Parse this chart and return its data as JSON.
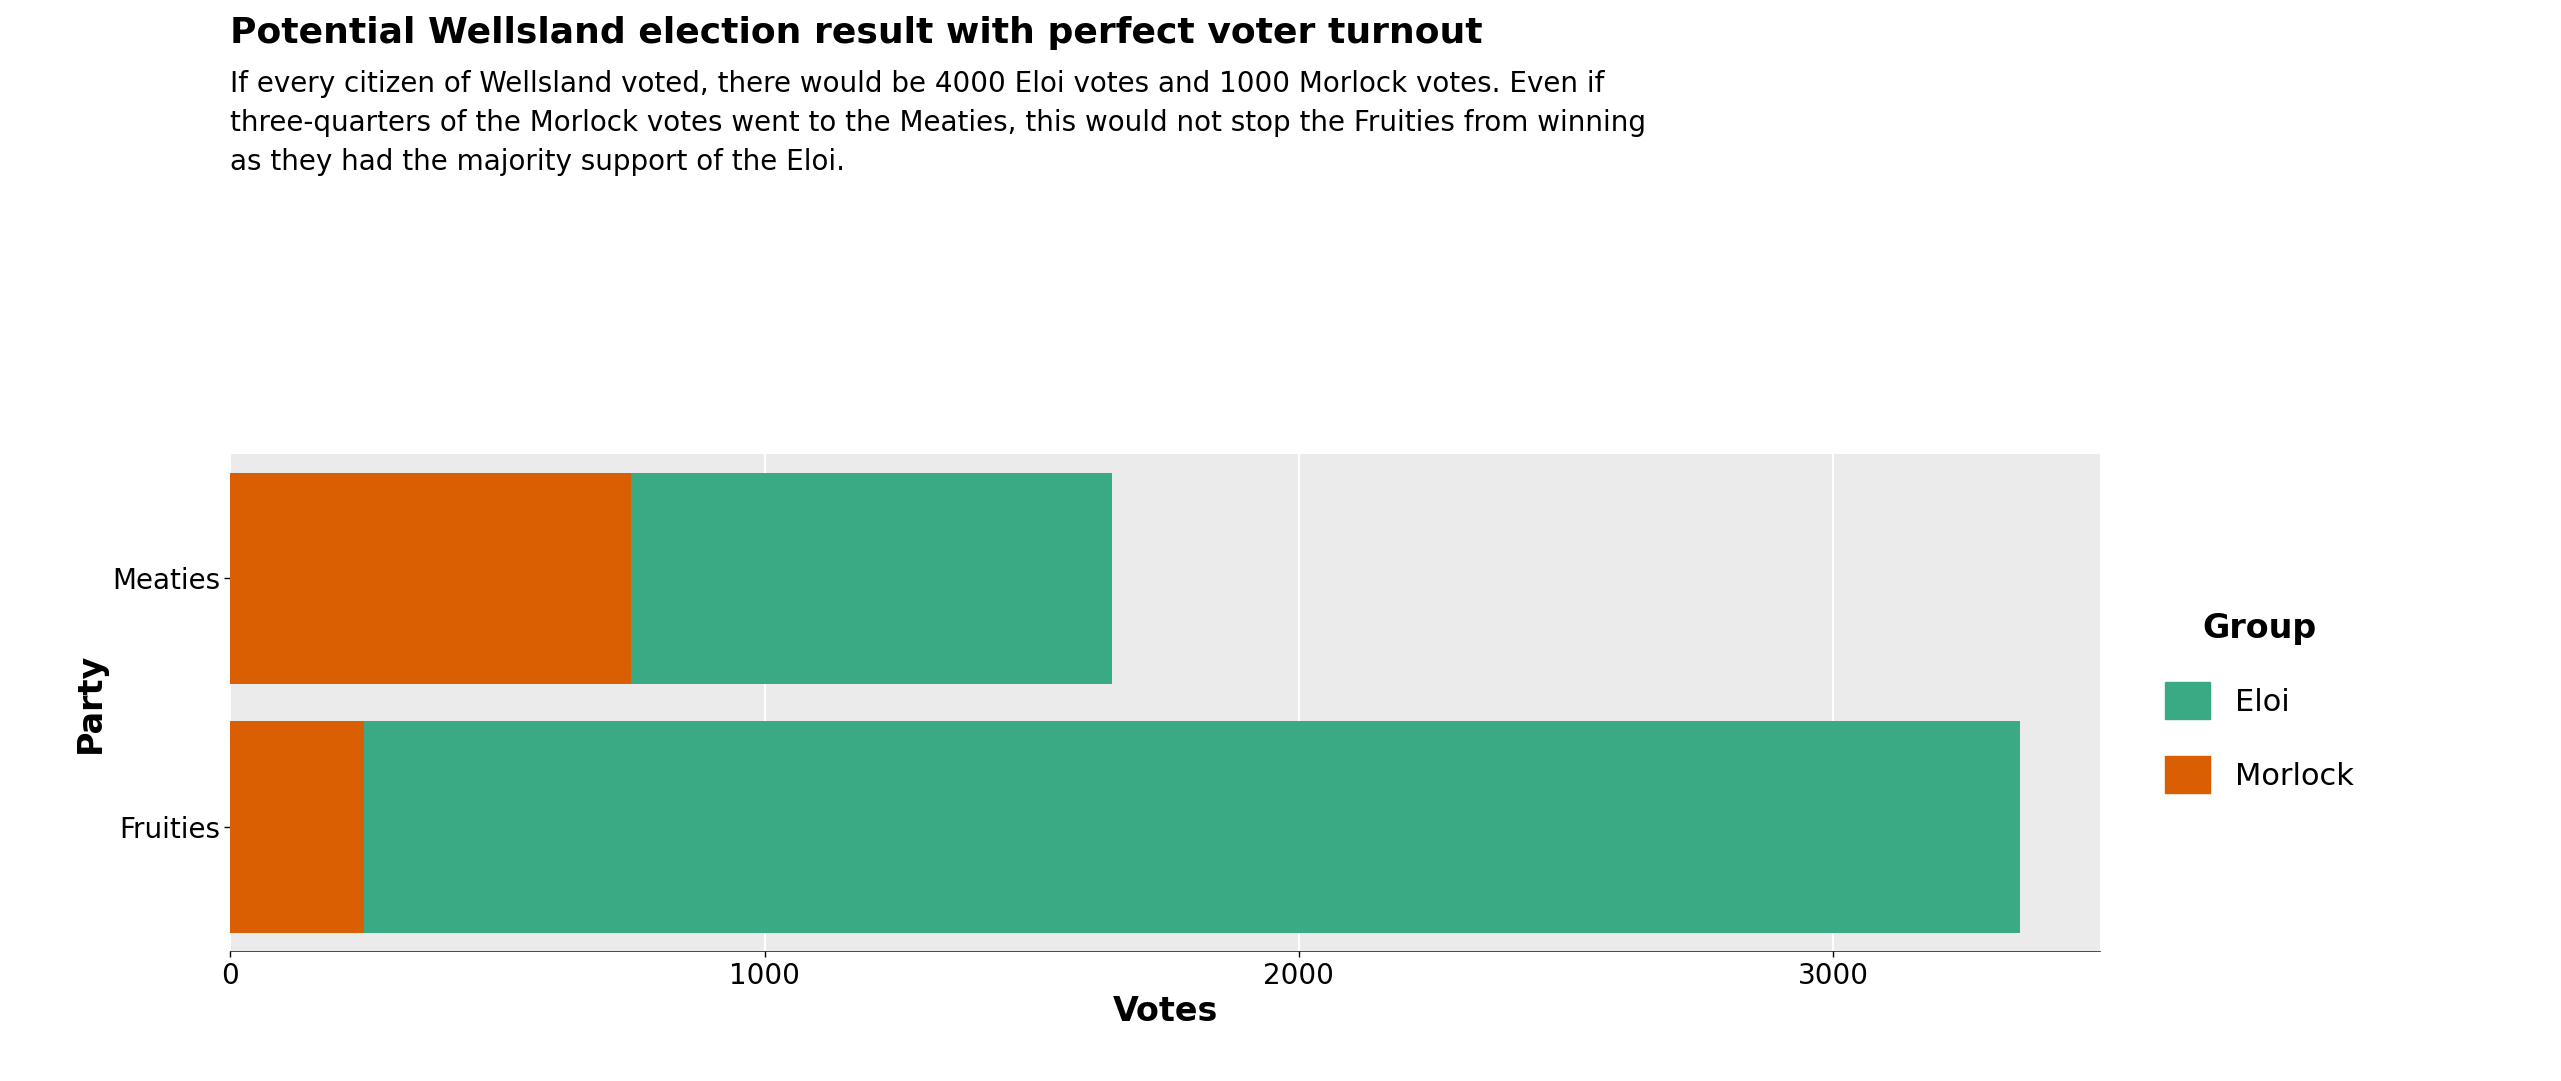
{
  "title": "Potential Wellsland election result with perfect voter turnout",
  "subtitle": "If every citizen of Wellsland voted, there would be 4000 Eloi votes and 1000 Morlock votes. Even if\nthree-quarters of the Morlock votes went to the Meaties, this would not stop the Fruities from winning\nas they had the majority support of the Eloi.",
  "xlabel": "Votes",
  "ylabel": "Party",
  "legend_title": "Group",
  "parties": [
    "Meaties",
    "Fruities"
  ],
  "eloi_votes": [
    900,
    3100
  ],
  "morlock_votes": [
    750,
    250
  ],
  "eloi_color": "#3aaa85",
  "morlock_color": "#d95f02",
  "background_color": "#ebebeb",
  "panel_background": "#ebebeb",
  "xlim": [
    0,
    3500
  ],
  "xticks": [
    0,
    1000,
    2000,
    3000
  ],
  "title_fontsize": 26,
  "subtitle_fontsize": 20,
  "axis_label_fontsize": 24,
  "tick_fontsize": 20,
  "legend_title_fontsize": 24,
  "legend_fontsize": 22,
  "bar_height": 0.85
}
